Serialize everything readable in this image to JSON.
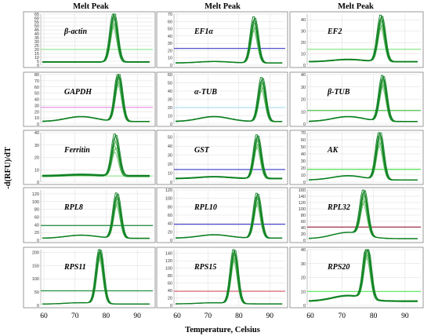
{
  "figure": {
    "column_titles": [
      "Melt Peak",
      "Melt Peak",
      "Melt Peak"
    ],
    "ylabel": "-d(RFU)/dT",
    "xlabel": "Temperature, Celsius",
    "x_ticks": [
      "60",
      "70",
      "80",
      "90"
    ]
  },
  "colors": {
    "curve_light": "#4caf50",
    "curve_dark": "#0a7d1f",
    "grid": "#dcdcdc",
    "frame": "#7f7f7f"
  },
  "chart_data": [
    {
      "type": "line",
      "gene": "β-actin",
      "peak_temp": 82.5,
      "peak_max": 65,
      "peak_min": 45,
      "baseline": 4,
      "bump": 0,
      "ylim": [
        0,
        65
      ],
      "yticks": [
        "0",
        "5",
        "10",
        "15",
        "20",
        "25",
        "30",
        "35",
        "40",
        "45",
        "50",
        "55",
        "60",
        "65"
      ],
      "threshold": 20,
      "threshold_color": "#7ee07e",
      "xlim": [
        59,
        95
      ]
    },
    {
      "type": "line",
      "gene": "EF1α",
      "peak_temp": 85,
      "peak_max": 65,
      "peak_min": 45,
      "baseline": 3,
      "bump": 2,
      "ylim": [
        0,
        70
      ],
      "yticks": [
        "0",
        "10",
        "20",
        "30",
        "40",
        "50",
        "60",
        "70"
      ],
      "threshold": 23,
      "threshold_color": "#3a3ac8",
      "xlim": [
        59,
        95
      ]
    },
    {
      "type": "line",
      "gene": "EF2",
      "peak_temp": 82.5,
      "peak_max": 42,
      "peak_min": 30,
      "baseline": 3,
      "bump": 2,
      "ylim": [
        0,
        45
      ],
      "yticks": [
        "0",
        "10",
        "20",
        "30",
        "40"
      ],
      "threshold": 14,
      "threshold_color": "#7ee07e",
      "xlim": [
        59,
        95
      ]
    },
    {
      "type": "line",
      "gene": "GAPDH",
      "peak_temp": 84,
      "peak_max": 80,
      "peak_min": 60,
      "baseline": 4,
      "bump": 8,
      "ylim": [
        0,
        80
      ],
      "yticks": [
        "0",
        "10",
        "20",
        "30",
        "40",
        "50",
        "60",
        "70",
        "80"
      ],
      "threshold": 27,
      "threshold_color": "#e87be0",
      "xlim": [
        59,
        95
      ]
    },
    {
      "type": "line",
      "gene": "α-TUB",
      "peak_temp": 87.5,
      "peak_max": 55,
      "peak_min": 38,
      "baseline": 3,
      "bump": 6,
      "ylim": [
        0,
        60
      ],
      "yticks": [
        "0",
        "10",
        "20",
        "30",
        "40",
        "50",
        "60"
      ],
      "threshold": 20,
      "threshold_color": "#9ed8f0",
      "xlim": [
        59,
        95
      ]
    },
    {
      "type": "line",
      "gene": "β-TUB",
      "peak_temp": 83,
      "peak_max": 38,
      "peak_min": 28,
      "baseline": 2,
      "bump": 4,
      "ylim": [
        0,
        40
      ],
      "yticks": [
        "0",
        "10",
        "20",
        "30",
        "40"
      ],
      "threshold": 11,
      "threshold_color": "#3fbf3f",
      "xlim": [
        59,
        95
      ]
    },
    {
      "type": "line",
      "gene": "Ferritin",
      "peak_temp": 83,
      "peak_max": 35,
      "peak_min": 20,
      "baseline": 5,
      "bump": 1,
      "ylim": [
        0,
        40
      ],
      "yticks": [
        "0",
        "10",
        "20",
        "30",
        "40"
      ],
      "threshold": 5,
      "threshold_color": "#7ee07e",
      "xlim": [
        59,
        95
      ]
    },
    {
      "type": "line",
      "gene": "GST",
      "peak_temp": 86,
      "peak_max": 50,
      "peak_min": 35,
      "baseline": 4,
      "bump": 2,
      "ylim": [
        0,
        55
      ],
      "yticks": [
        "0",
        "10",
        "20",
        "30",
        "40",
        "50"
      ],
      "threshold": 14,
      "threshold_color": "#3a3ac8",
      "xlim": [
        59,
        95
      ]
    },
    {
      "type": "line",
      "gene": "AK",
      "peak_temp": 82,
      "peak_max": 70,
      "peak_min": 48,
      "baseline": 3,
      "bump": 6,
      "ylim": [
        0,
        70
      ],
      "yticks": [
        "0",
        "10",
        "20",
        "30",
        "40",
        "50",
        "60",
        "70"
      ],
      "threshold": 18,
      "threshold_color": "#3fdf3f",
      "xlim": [
        59,
        95
      ]
    },
    {
      "type": "line",
      "gene": "RPL8",
      "peak_temp": 83.5,
      "peak_max": 120,
      "peak_min": 85,
      "baseline": 5,
      "bump": 8,
      "ylim": [
        0,
        130
      ],
      "yticks": [
        "0",
        "20",
        "40",
        "60",
        "80",
        "100",
        "120"
      ],
      "threshold": 38,
      "threshold_color": "#0f8a2f",
      "xlim": [
        59,
        95
      ]
    },
    {
      "type": "line",
      "gene": "RPL10",
      "peak_temp": 86,
      "peak_max": 110,
      "peak_min": 80,
      "baseline": 5,
      "bump": 8,
      "ylim": [
        0,
        120
      ],
      "yticks": [
        "0",
        "20",
        "40",
        "60",
        "80",
        "100",
        "120"
      ],
      "threshold": 38,
      "threshold_color": "#3a3ac8",
      "xlim": [
        59,
        95
      ]
    },
    {
      "type": "line",
      "gene": "RPL32",
      "peak_temp": 77,
      "peak_max": 150,
      "peak_min": 100,
      "baseline": 5,
      "bump": 20,
      "ylim": [
        0,
        160
      ],
      "yticks": [
        "0",
        "20",
        "40",
        "60",
        "80",
        "100",
        "120",
        "140",
        "160"
      ],
      "threshold": 42,
      "threshold_color": "#9a1f3a",
      "xlim": [
        59,
        95
      ]
    },
    {
      "type": "line",
      "gene": "RPS11",
      "peak_temp": 78,
      "peak_max": 210,
      "peak_min": 170,
      "baseline": 5,
      "bump": 5,
      "ylim": [
        0,
        210
      ],
      "yticks": [
        "0",
        "50",
        "100",
        "150",
        "200"
      ],
      "threshold": 55,
      "threshold_color": "#0f8a2f",
      "xlim": [
        59,
        95
      ]
    },
    {
      "type": "line",
      "gene": "RPS15",
      "peak_temp": 78.5,
      "peak_max": 150,
      "peak_min": 115,
      "baseline": 4,
      "bump": 3,
      "ylim": [
        0,
        150
      ],
      "yticks": [
        "0",
        "20",
        "40",
        "60",
        "80",
        "100",
        "120",
        "140"
      ],
      "threshold": 38,
      "threshold_color": "#e05a6a",
      "xlim": [
        59,
        95
      ]
    },
    {
      "type": "line",
      "gene": "RPS20",
      "peak_temp": 78,
      "peak_max": 40,
      "peak_min": 30,
      "baseline": 3,
      "bump": 4,
      "ylim": [
        0,
        40
      ],
      "yticks": [
        "0",
        "10",
        "20",
        "30",
        "40"
      ],
      "threshold": 10,
      "threshold_color": "#3fdf3f",
      "xlim": [
        59,
        95
      ]
    }
  ]
}
